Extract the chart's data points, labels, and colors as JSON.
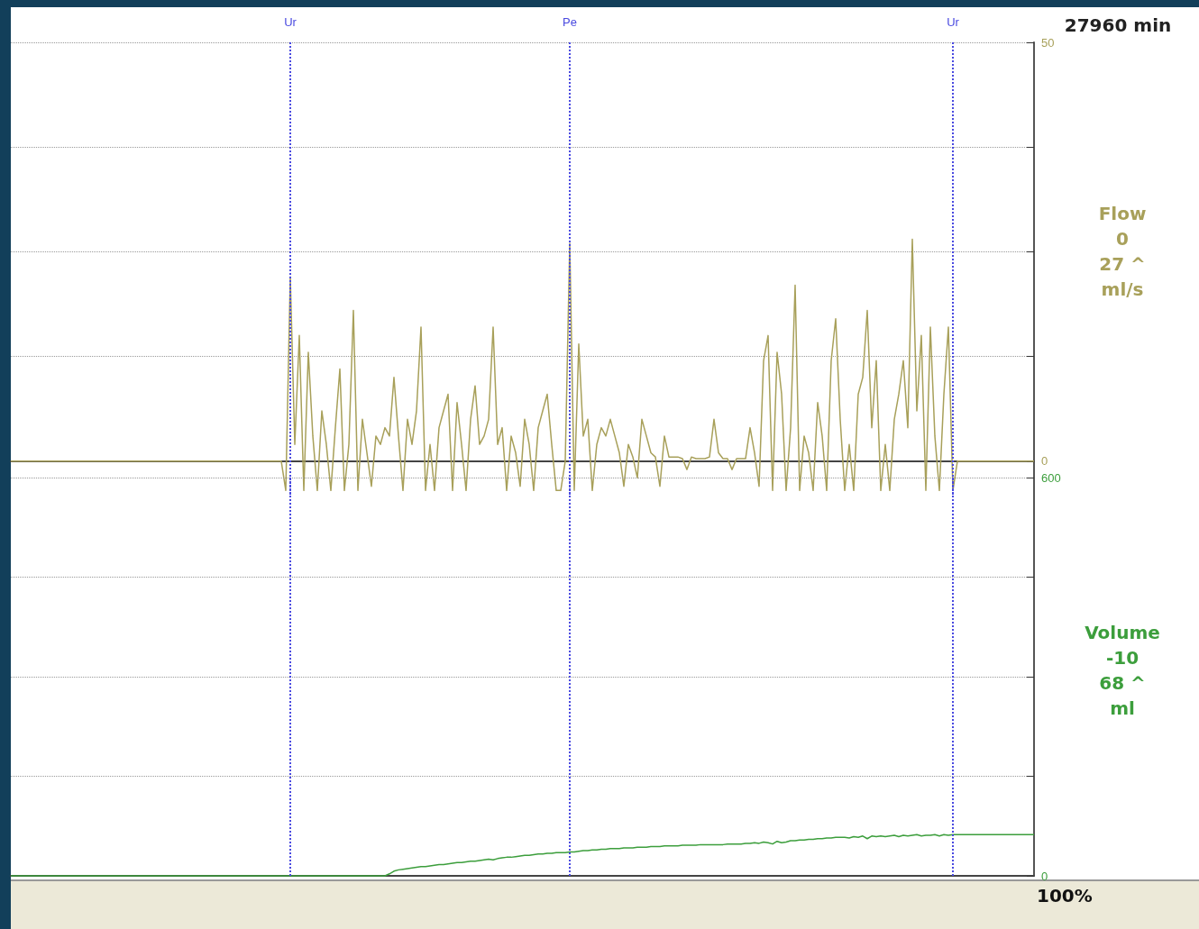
{
  "chart_data": [
    {
      "type": "line",
      "categories": [
        null,
        null,
        null,
        null,
        null,
        null,
        null,
        null,
        null,
        null,
        null,
        null,
        null,
        null,
        null,
        null,
        null,
        null,
        null,
        null,
        null,
        null,
        null,
        null,
        null,
        null,
        null,
        null,
        null,
        null,
        null,
        null,
        null,
        null,
        null,
        null,
        null,
        null,
        null,
        null,
        null,
        null,
        null,
        null,
        null,
        null,
        null,
        null,
        null,
        null,
        null,
        null,
        null,
        null,
        null,
        null,
        null,
        null,
        null,
        null,
        null,
        null,
        null,
        null,
        null,
        null,
        null,
        null,
        null,
        null,
        null,
        null,
        null,
        null,
        null,
        null,
        null,
        null,
        null,
        null,
        null,
        null,
        null,
        null,
        null,
        null,
        null,
        null,
        null,
        null,
        null,
        null,
        null,
        null,
        null,
        null,
        null,
        null,
        null,
        null,
        null,
        null,
        null,
        null,
        null,
        null,
        null,
        null,
        null,
        null,
        null,
        null,
        null,
        null,
        null,
        null,
        null,
        null,
        null,
        null,
        null,
        null,
        null,
        null,
        null,
        null,
        null,
        null,
        null,
        null,
        null,
        null,
        null,
        null,
        null,
        null,
        null,
        null,
        null,
        null,
        null,
        null,
        null,
        null,
        null,
        null,
        null,
        null,
        null,
        null,
        null,
        null,
        null,
        null,
        null,
        null,
        null,
        null,
        null,
        null,
        null,
        null,
        null,
        null,
        null,
        null,
        null,
        null,
        null,
        null,
        null,
        null,
        null,
        null,
        null,
        null,
        null,
        null,
        null,
        null,
        null,
        null,
        null,
        null,
        null,
        null,
        null,
        null,
        null,
        null,
        null,
        null,
        null,
        null,
        null,
        null,
        null,
        null,
        null,
        null,
        null,
        null,
        null,
        null,
        null,
        null,
        null,
        null,
        null,
        null,
        null,
        null,
        null,
        null,
        null,
        null,
        null,
        null,
        null,
        null,
        null,
        null,
        null,
        null,
        null,
        null,
        null,
        null
      ],
      "series": [
        {
          "color": "#a8a05a",
          "values": [
            0,
            0,
            0,
            0,
            0,
            0,
            0,
            0,
            0,
            0,
            0,
            0,
            0,
            0,
            0,
            0,
            0,
            0,
            0,
            0,
            0,
            0,
            0,
            0,
            0,
            0,
            0,
            0,
            0,
            0,
            0,
            0,
            0,
            0,
            0,
            0,
            0,
            0,
            0,
            0,
            0,
            0,
            0,
            0,
            0,
            0,
            0,
            0,
            0,
            0,
            0,
            0,
            0,
            0,
            0,
            0,
            0,
            0,
            0,
            0,
            0,
            -3.5,
            22,
            2,
            15,
            -3.5,
            13,
            3,
            -3.5,
            6,
            2,
            -3.5,
            4,
            11,
            -3.5,
            2,
            18,
            -3.5,
            5,
            1,
            -3,
            3,
            2,
            4,
            3,
            10,
            3,
            -3.5,
            5,
            2,
            6,
            16,
            -3.5,
            2,
            -3.5,
            4,
            6,
            8,
            -3.5,
            7,
            2,
            -3.5,
            5,
            9,
            2,
            3,
            5,
            16,
            2,
            4,
            -3.5,
            3,
            1,
            -3,
            5,
            2,
            -3.5,
            4,
            6,
            8,
            2,
            -3.5,
            -3.5,
            0,
            26,
            -3.5,
            14,
            3,
            5,
            -3.5,
            2,
            4,
            3,
            5,
            3,
            1,
            -3,
            2,
            0.5,
            -2,
            5,
            3,
            1,
            0.5,
            -3,
            3,
            0.5,
            0.5,
            0.5,
            0.3,
            -1,
            0.5,
            0.3,
            0.3,
            0.3,
            0.5,
            5,
            1,
            0.3,
            0.3,
            -1,
            0.3,
            0.3,
            0.3,
            4,
            1,
            -3,
            12,
            15,
            -3.5,
            13,
            8,
            -3.5,
            4,
            21,
            -3.5,
            3,
            1,
            -3.5,
            7,
            3,
            -3.5,
            12,
            17,
            5,
            -3.5,
            2,
            -3.5,
            8,
            10,
            18,
            4,
            12,
            -3.5,
            2,
            -3.5,
            5,
            8,
            12,
            4,
            26.5,
            6,
            15,
            -3.5,
            16,
            3,
            -3.5,
            8,
            16,
            -3.5,
            0,
            0,
            0,
            0,
            0,
            0,
            0,
            0,
            0,
            0,
            0,
            0,
            0,
            0,
            0,
            0,
            0,
            0
          ]
        }
      ],
      "ylim": [
        -4,
        50
      ],
      "yticks": [
        0,
        {
          "value": 12.5,
          "label": null
        },
        {
          "value": 25,
          "label": null
        },
        {
          "value": 37.5,
          "label": null
        },
        50
      ],
      "grid": "y",
      "tick_labels": "y",
      "marker": "none",
      "annotations": [
        "27960 min",
        "Flow",
        "0",
        "27 ^",
        "ml/s",
        "Ur",
        "Pe",
        "Ur"
      ]
    },
    {
      "type": "line",
      "categories": [
        null,
        null,
        null,
        null,
        null,
        null,
        null,
        null,
        null,
        null,
        null,
        null,
        null,
        null,
        null,
        null,
        null,
        null,
        null,
        null,
        null,
        null,
        null,
        null,
        null,
        null,
        null,
        null,
        null,
        null,
        null,
        null,
        null,
        null,
        null,
        null,
        null,
        null,
        null,
        null,
        null,
        null,
        null,
        null,
        null,
        null,
        null,
        null,
        null,
        null,
        null,
        null,
        null,
        null,
        null,
        null,
        null,
        null,
        null,
        null,
        null,
        null,
        null,
        null,
        null,
        null,
        null,
        null,
        null,
        null,
        null,
        null,
        null,
        null,
        null,
        null,
        null,
        null,
        null,
        null,
        null,
        null,
        null,
        null,
        null,
        null,
        null,
        null,
        null,
        null,
        null,
        null,
        null,
        null,
        null,
        null,
        null,
        null,
        null,
        null,
        null,
        null,
        null,
        null,
        null,
        null,
        null,
        null,
        null,
        null,
        null,
        null,
        null,
        null,
        null,
        null,
        null,
        null,
        null,
        null,
        null,
        null,
        null,
        null,
        null,
        null,
        null,
        null,
        null,
        null,
        null,
        null,
        null,
        null,
        null,
        null,
        null,
        null,
        null,
        null,
        null,
        null,
        null,
        null,
        null,
        null,
        null,
        null,
        null,
        null,
        null,
        null,
        null,
        null,
        null,
        null,
        null,
        null,
        null,
        null,
        null,
        null,
        null,
        null,
        null,
        null,
        null,
        null,
        null,
        null,
        null,
        null,
        null,
        null,
        null,
        null,
        null,
        null,
        null,
        null,
        null,
        null,
        null,
        null,
        null,
        null,
        null,
        null,
        null,
        null,
        null,
        null,
        null,
        null,
        null,
        null,
        null,
        null,
        null,
        null,
        null,
        null,
        null,
        null,
        null,
        null,
        null,
        null,
        null,
        null,
        null,
        null,
        null,
        null,
        null,
        null,
        null,
        null,
        null,
        null,
        null,
        null,
        null,
        null,
        null,
        null,
        null,
        null
      ],
      "series": [
        {
          "color": "#3c9e3c",
          "values": [
            0,
            0,
            0,
            0,
            0,
            0,
            0,
            0,
            0,
            0,
            0,
            0,
            0,
            0,
            0,
            0,
            0,
            0,
            0,
            0,
            0,
            0,
            0,
            0,
            0,
            0,
            0,
            0,
            0,
            0,
            0,
            0,
            0,
            0,
            0,
            0,
            0,
            0,
            0,
            0,
            0,
            0,
            0,
            0,
            0,
            0,
            0,
            0,
            0,
            0,
            0,
            0,
            0,
            0,
            0,
            0,
            0,
            0,
            0,
            0,
            0,
            0,
            0,
            0,
            0,
            0,
            0,
            0,
            0,
            0,
            0,
            0,
            0,
            0,
            0,
            0,
            0,
            0,
            0,
            0,
            0,
            0,
            0,
            0,
            3,
            7,
            9,
            10,
            11,
            12,
            13,
            14,
            14,
            15,
            16,
            17,
            17,
            18,
            19,
            20,
            20,
            21,
            22,
            22,
            23,
            24,
            25,
            24,
            26,
            27,
            28,
            28,
            29,
            30,
            31,
            31,
            32,
            33,
            33,
            34,
            34,
            35,
            35,
            35,
            36,
            36,
            37,
            38,
            38,
            39,
            39,
            40,
            40,
            41,
            41,
            41,
            42,
            42,
            42,
            43,
            43,
            43,
            44,
            44,
            44,
            45,
            45,
            45,
            45,
            46,
            46,
            46,
            46,
            47,
            47,
            47,
            47,
            47,
            47,
            48,
            48,
            48,
            48,
            49,
            49,
            50,
            49,
            51,
            50,
            48,
            52,
            50,
            51,
            53,
            53,
            54,
            54,
            55,
            55,
            56,
            56,
            57,
            57,
            58,
            58,
            58,
            57,
            59,
            58,
            60,
            56,
            60,
            59,
            60,
            59,
            60,
            61,
            59,
            61,
            60,
            61,
            62,
            60,
            61,
            61,
            62,
            60,
            62,
            61,
            62,
            62,
            62,
            62,
            62,
            62,
            62,
            62,
            62,
            62,
            62,
            62,
            62,
            62,
            62,
            62,
            62,
            62,
            62
          ]
        }
      ],
      "ylim": [
        0,
        600
      ],
      "yticks": [
        0,
        {
          "value": 150,
          "label": null
        },
        {
          "value": 300,
          "label": null
        },
        {
          "value": 450,
          "label": null
        },
        600
      ],
      "grid": "y",
      "tick_labels": "y",
      "marker": "none",
      "annotations": [
        "Volume",
        "-10",
        "68 ^",
        "ml",
        "100%"
      ]
    }
  ]
}
